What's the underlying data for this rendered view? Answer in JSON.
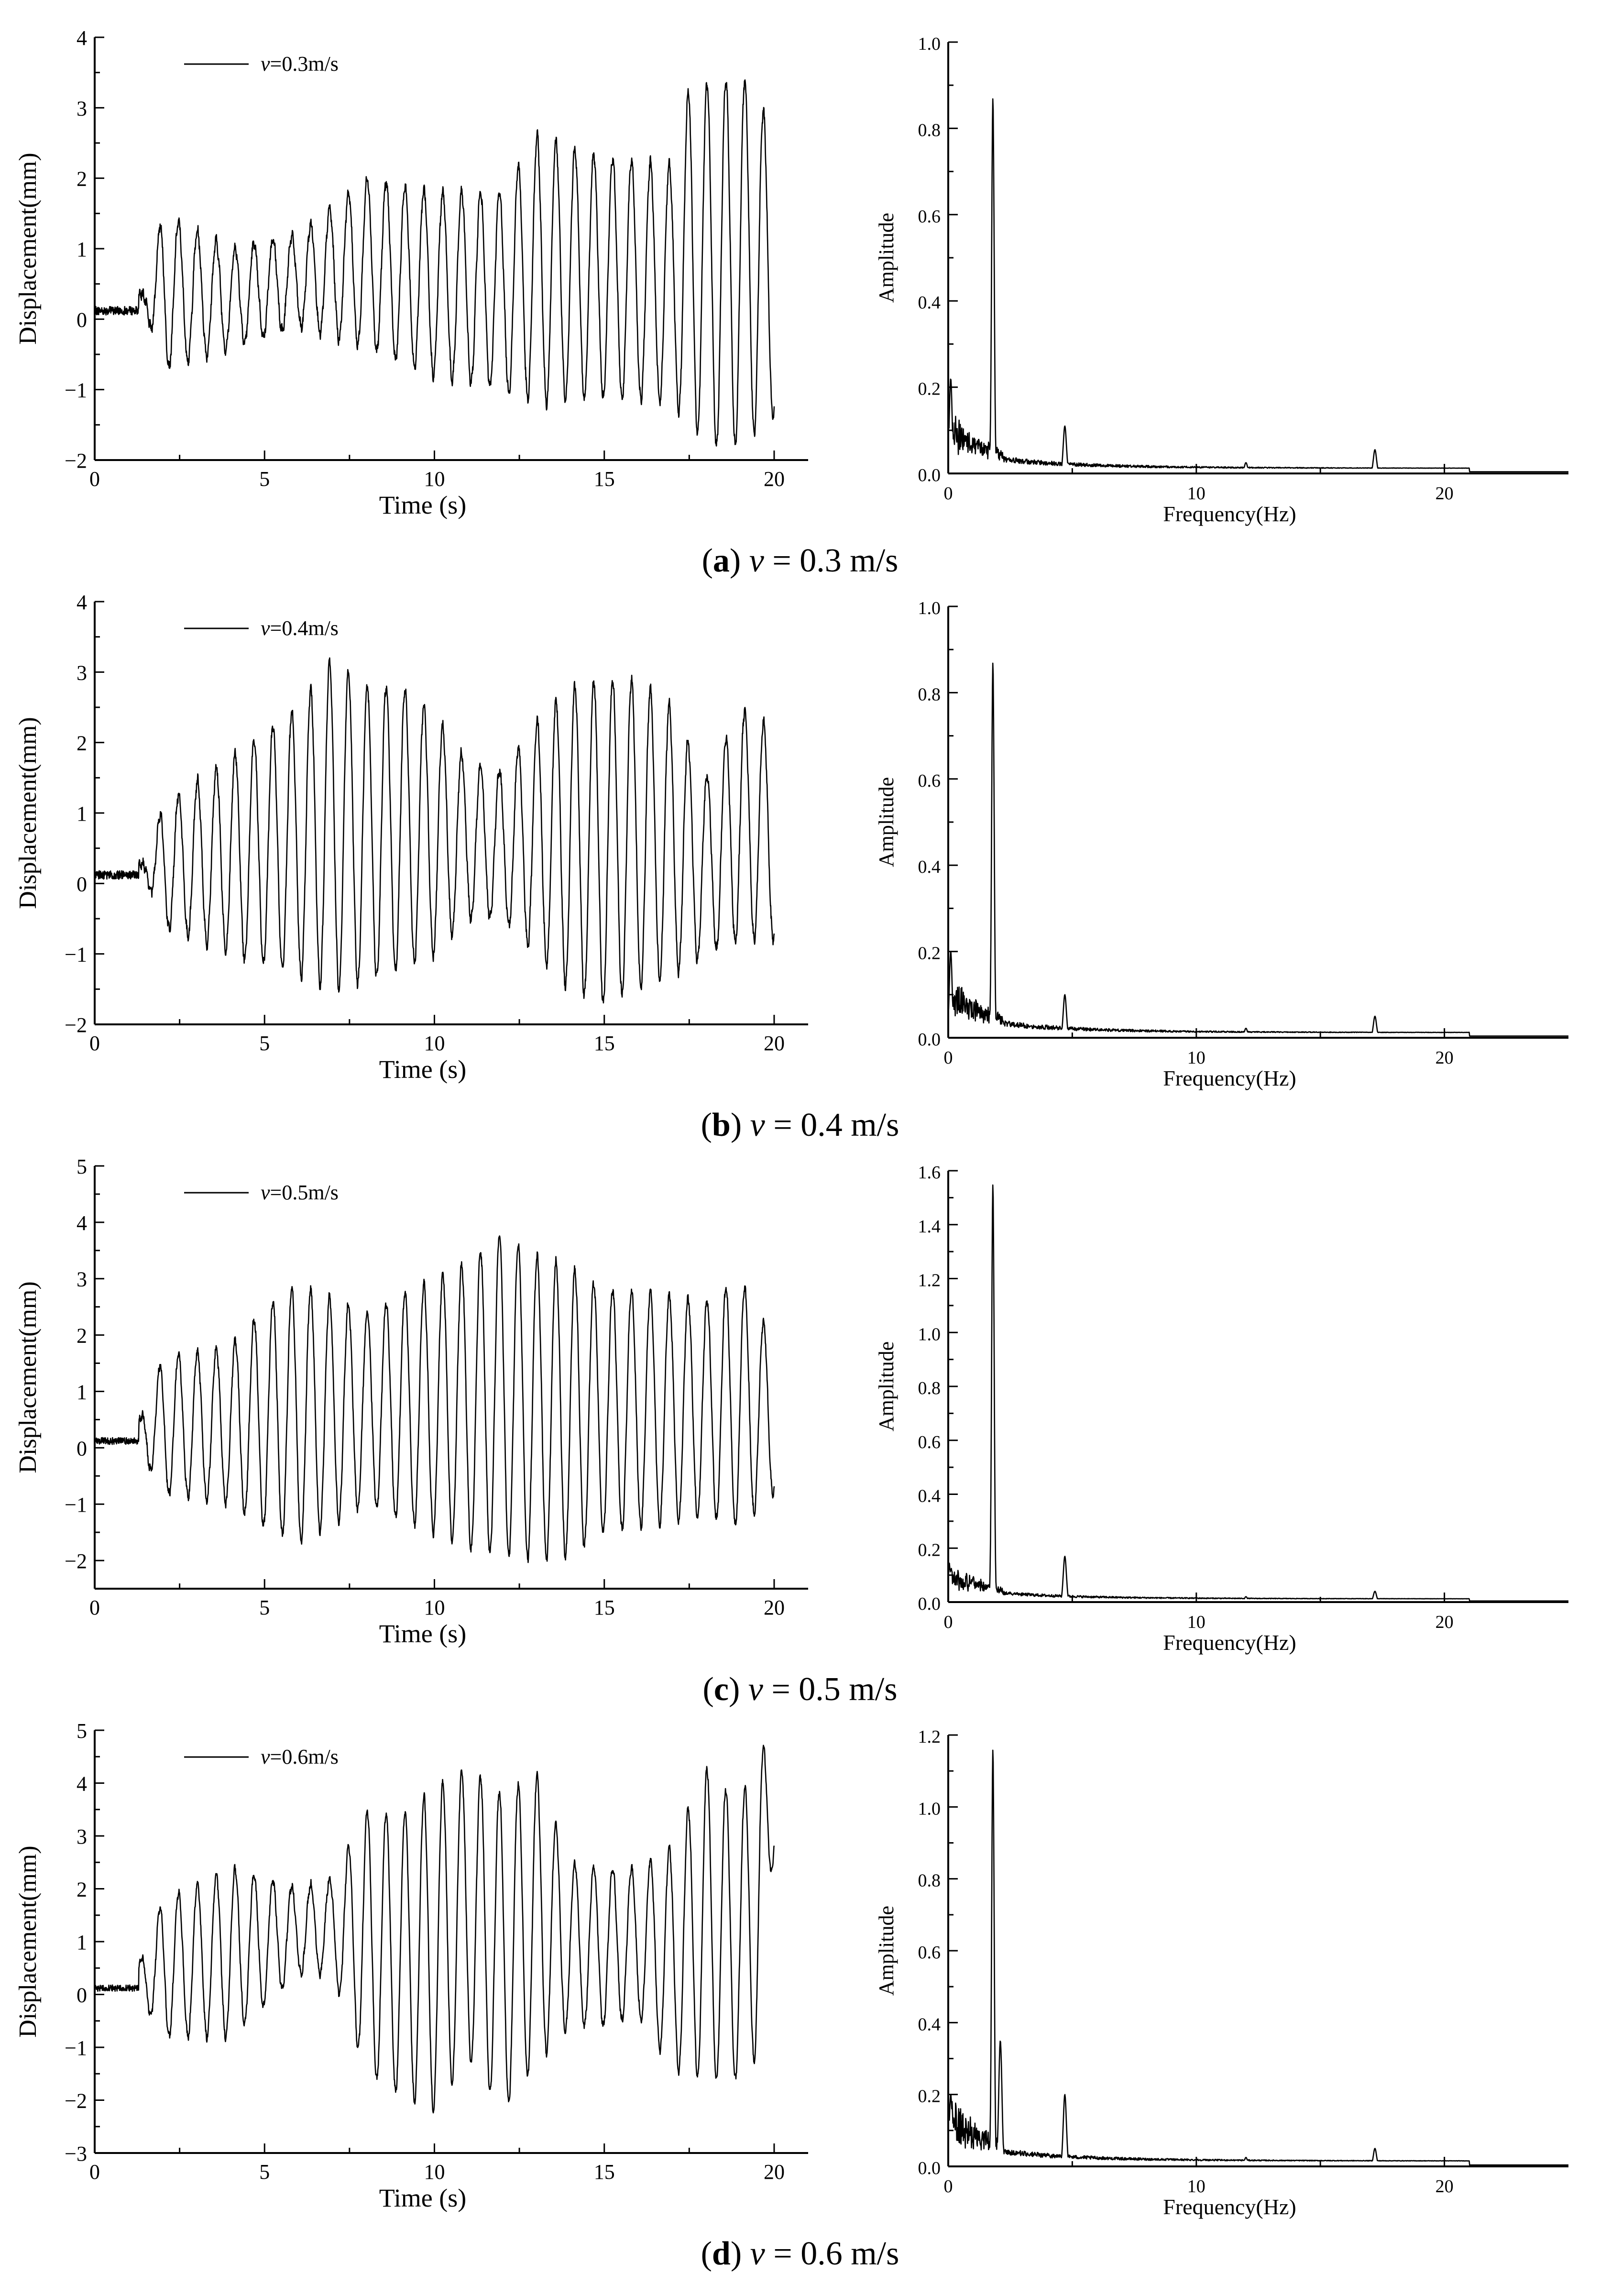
{
  "rows": [
    {
      "caption": {
        "label": "a",
        "var": "v",
        "text": " = 0.3 m/s"
      },
      "time_chart": {
        "type": "line",
        "title": "",
        "legend": "v=0.3m/s",
        "legend_var": "v",
        "legend_text": "=0.3m/s",
        "xlabel": "Time (s)",
        "ylabel": "Displacement(mm)",
        "xlim": [
          0,
          21
        ],
        "ylim": [
          -2,
          4
        ],
        "xticks": [
          0,
          5,
          10,
          15,
          20
        ],
        "yticks": [
          -2,
          -1,
          0,
          1,
          2,
          3,
          4
        ],
        "envelope": {
          "t": [
            0,
            1.5,
            2,
            4,
            6,
            8,
            10,
            12,
            13,
            15,
            17,
            17.5,
            18.5,
            19.5,
            20
          ],
          "max": [
            0.15,
            0.4,
            1.5,
            1.0,
            1.2,
            2.0,
            1.8,
            1.8,
            2.6,
            2.3,
            2.2,
            3.3,
            3.4,
            3.4,
            2.2
          ],
          "min": [
            0.1,
            0.1,
            -0.7,
            -0.4,
            -0.1,
            -0.4,
            -0.8,
            -1.0,
            -1.2,
            -1.1,
            -1.2,
            -1.5,
            -1.9,
            -1.6,
            -1.4
          ]
        }
      },
      "fft_chart": {
        "type": "line",
        "title": "",
        "xlabel": "Frequency(Hz)",
        "ylabel": "Amplitude",
        "xlim": [
          0,
          25
        ],
        "ylim": [
          0,
          1.0
        ],
        "xticks": [
          0,
          10,
          20
        ],
        "yticks": [
          0.0,
          0.2,
          0.4,
          0.6,
          0.8,
          1.0
        ],
        "peaks": [
          {
            "f": 0.1,
            "a": 0.22
          },
          {
            "f": 1.8,
            "a": 0.87
          },
          {
            "f": 4.7,
            "a": 0.11
          },
          {
            "f": 12.0,
            "a": 0.025
          },
          {
            "f": 17.2,
            "a": 0.055
          }
        ],
        "baseline": 0.012
      }
    },
    {
      "caption": {
        "label": "b",
        "var": "v",
        "text": " = 0.4 m/s"
      },
      "time_chart": {
        "type": "line",
        "title": "",
        "legend": "v=0.4m/s",
        "legend_var": "v",
        "legend_text": "=0.4m/s",
        "xlabel": "Time (s)",
        "ylabel": "Displacement(mm)",
        "xlim": [
          0,
          21
        ],
        "ylim": [
          -2,
          4
        ],
        "xticks": [
          0,
          5,
          10,
          15,
          20
        ],
        "yticks": [
          -2,
          -1,
          0,
          1,
          2,
          3,
          4
        ],
        "envelope": {
          "t": [
            0,
            1.5,
            2,
            4,
            6,
            7,
            8,
            9,
            10,
            11,
            12,
            13,
            14,
            15,
            16,
            17,
            18,
            19,
            20
          ],
          "max": [
            0.15,
            0.3,
            1.1,
            1.8,
            2.5,
            3.2,
            2.8,
            2.8,
            2.4,
            1.7,
            1.6,
            2.3,
            2.8,
            2.9,
            2.9,
            2.5,
            1.5,
            2.5,
            2.2
          ],
          "min": [
            0.1,
            0.1,
            -0.6,
            -1.0,
            -1.3,
            -1.5,
            -1.4,
            -1.2,
            -1.0,
            -0.5,
            -0.5,
            -1.0,
            -1.5,
            -1.7,
            -1.5,
            -1.3,
            -1.0,
            -0.8,
            -0.8
          ]
        }
      },
      "fft_chart": {
        "type": "line",
        "title": "",
        "xlabel": "Frequency(Hz)",
        "ylabel": "Amplitude",
        "xlim": [
          0,
          25
        ],
        "ylim": [
          0,
          1.0
        ],
        "xticks": [
          0,
          10,
          20
        ],
        "yticks": [
          0.0,
          0.2,
          0.4,
          0.6,
          0.8,
          1.0
        ],
        "peaks": [
          {
            "f": 0.1,
            "a": 0.2
          },
          {
            "f": 1.8,
            "a": 0.87
          },
          {
            "f": 4.7,
            "a": 0.1
          },
          {
            "f": 12.0,
            "a": 0.022
          },
          {
            "f": 17.2,
            "a": 0.05
          }
        ],
        "baseline": 0.012
      }
    },
    {
      "caption": {
        "label": "c",
        "var": "v",
        "text": " = 0.5 m/s"
      },
      "time_chart": {
        "type": "line",
        "title": "",
        "legend": "v=0.5m/s",
        "legend_var": "v",
        "legend_text": "=0.5m/s",
        "xlabel": "Time (s)",
        "ylabel": "Displacement(mm)",
        "xlim": [
          0,
          21
        ],
        "ylim": [
          -2.5,
          5
        ],
        "xticks": [
          0,
          5,
          10,
          15,
          20
        ],
        "yticks": [
          -2,
          -1,
          0,
          1,
          2,
          3,
          4,
          5
        ],
        "envelope": {
          "t": [
            0,
            1.2,
            2,
            4,
            5,
            6,
            8,
            10,
            11,
            12,
            13,
            14,
            15,
            16,
            18,
            19,
            20
          ],
          "max": [
            0.15,
            0.3,
            1.6,
            1.8,
            2.5,
            2.9,
            2.4,
            3.0,
            3.3,
            3.8,
            3.4,
            3.2,
            2.8,
            2.8,
            2.6,
            3.0,
            1.9
          ],
          "min": [
            0.1,
            0.1,
            -0.8,
            -1.0,
            -1.4,
            -1.7,
            -1.0,
            -1.5,
            -1.8,
            -1.9,
            -2.0,
            -1.9,
            -1.5,
            -1.4,
            -1.2,
            -1.4,
            -0.8
          ]
        }
      },
      "fft_chart": {
        "type": "line",
        "title": "",
        "xlabel": "Frequency(Hz)",
        "ylabel": "Amplitude",
        "xlim": [
          0,
          25
        ],
        "ylim": [
          0,
          1.6
        ],
        "xticks": [
          0,
          10,
          20
        ],
        "yticks": [
          0.0,
          0.2,
          0.4,
          0.6,
          0.8,
          1.0,
          1.2,
          1.4,
          1.6
        ],
        "peaks": [
          {
            "f": 0.1,
            "a": 0.12
          },
          {
            "f": 1.8,
            "a": 1.55
          },
          {
            "f": 4.7,
            "a": 0.17
          },
          {
            "f": 12.0,
            "a": 0.02
          },
          {
            "f": 17.2,
            "a": 0.04
          }
        ],
        "baseline": 0.012
      }
    },
    {
      "caption": {
        "label": "d",
        "var": "v",
        "text": " = 0.6 m/s"
      },
      "time_chart": {
        "type": "line",
        "title": "",
        "legend": "v=0.6m/s",
        "legend_var": "v",
        "legend_text": "=0.6m/s",
        "xlabel": "Time (s)",
        "ylabel": "Displacement(mm)",
        "xlim": [
          0,
          21
        ],
        "ylim": [
          -3,
          5
        ],
        "xticks": [
          0,
          5,
          10,
          15,
          20
        ],
        "yticks": [
          -3,
          -2,
          -1,
          0,
          1,
          2,
          3,
          4,
          5
        ],
        "envelope": {
          "t": [
            0,
            1.2,
            2,
            4,
            6,
            7,
            8,
            9,
            10,
            11,
            12,
            13,
            14,
            15,
            16,
            17,
            18,
            19,
            19.5,
            20
          ],
          "max": [
            0.2,
            0.4,
            1.8,
            2.4,
            2.0,
            2.2,
            3.5,
            3.4,
            3.9,
            4.3,
            3.8,
            4.2,
            2.5,
            2.4,
            2.4,
            2.8,
            4.3,
            3.6,
            4.8,
            4.5
          ],
          "min": [
            0.1,
            0.1,
            -0.8,
            -0.8,
            0.4,
            0.4,
            -1.5,
            -1.9,
            -2.2,
            -1.2,
            -2.2,
            -1.3,
            -0.6,
            -0.6,
            -0.4,
            -1.4,
            -1.6,
            -1.6,
            -1.2,
            2.8
          ]
        }
      },
      "fft_chart": {
        "type": "line",
        "title": "",
        "xlabel": "Frequency(Hz)",
        "ylabel": "Amplitude",
        "xlim": [
          0,
          25
        ],
        "ylim": [
          0,
          1.2
        ],
        "xticks": [
          0,
          10,
          20
        ],
        "yticks": [
          0.0,
          0.2,
          0.4,
          0.6,
          0.8,
          1.0,
          1.2
        ],
        "peaks": [
          {
            "f": 0.1,
            "a": 0.2
          },
          {
            "f": 1.8,
            "a": 1.16
          },
          {
            "f": 2.1,
            "a": 0.35
          },
          {
            "f": 4.7,
            "a": 0.2
          },
          {
            "f": 12.0,
            "a": 0.025
          },
          {
            "f": 17.2,
            "a": 0.05
          }
        ],
        "baseline": 0.015
      }
    }
  ]
}
